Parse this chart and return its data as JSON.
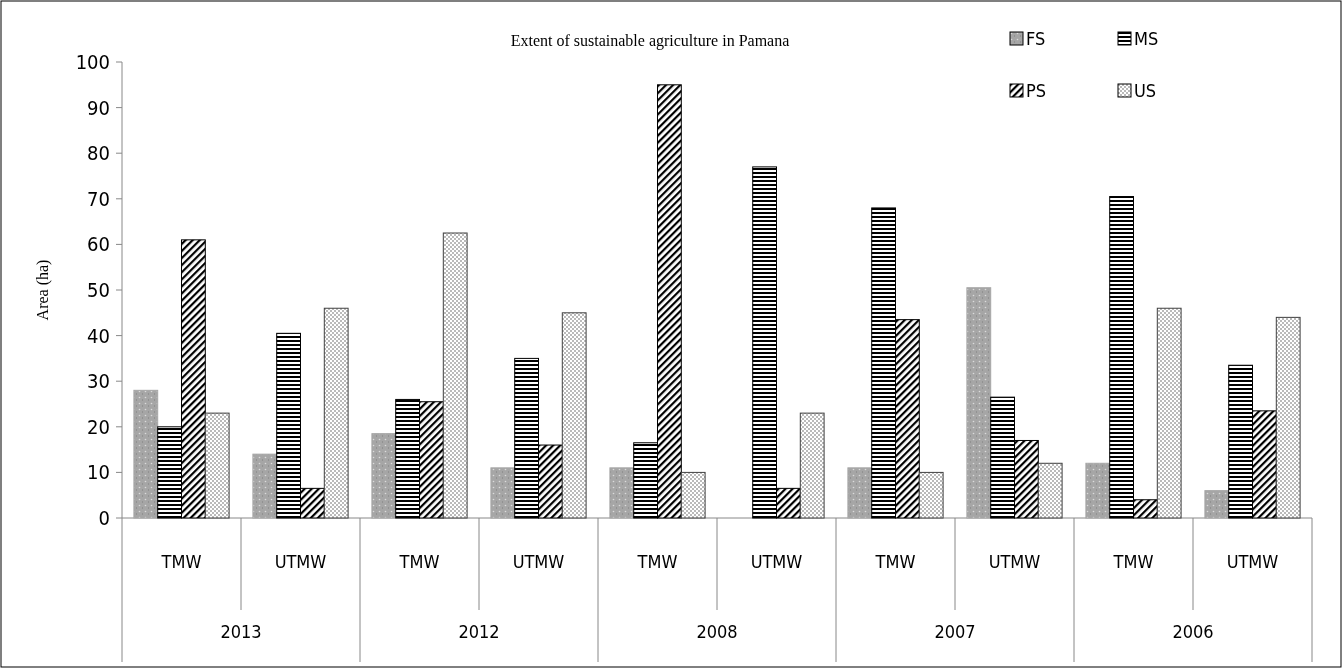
{
  "chart_data": {
    "type": "bar",
    "title": "Extent of sustainable agriculture in Pamana",
    "ylabel": "Area (ha)",
    "categories": [
      "TMW",
      "UTMW",
      "TMW",
      "UTMW",
      "TMW",
      "UTMW",
      "TMW",
      "UTMW",
      "TMW",
      "UTMW"
    ],
    "annotations": [
      "2013",
      "2012",
      "2008",
      "2007",
      "2006"
    ],
    "series": [
      {
        "name": "FS",
        "color": "#a6a6a6",
        "values": [
          28,
          14,
          18.5,
          11,
          11,
          0,
          11,
          50.5,
          12,
          6
        ]
      },
      {
        "name": "MS",
        "color": "#000000",
        "values": [
          20,
          40.5,
          26,
          35,
          16.5,
          77,
          68,
          26.5,
          70.5,
          33.5
        ]
      },
      {
        "name": "PS",
        "color": "#000000",
        "values": [
          61,
          6.5,
          25.5,
          16,
          95,
          6.5,
          43.5,
          17,
          4,
          23.5
        ]
      },
      {
        "name": "US",
        "color": "#404040",
        "values": [
          23,
          46,
          62.5,
          45,
          10,
          23,
          10,
          12,
          46,
          44
        ]
      }
    ],
    "ylim": [
      0,
      100
    ],
    "yticks": [
      0,
      10,
      20,
      30,
      40,
      50,
      60,
      70,
      80,
      90,
      100
    ],
    "grid": false,
    "legend": "top right"
  }
}
